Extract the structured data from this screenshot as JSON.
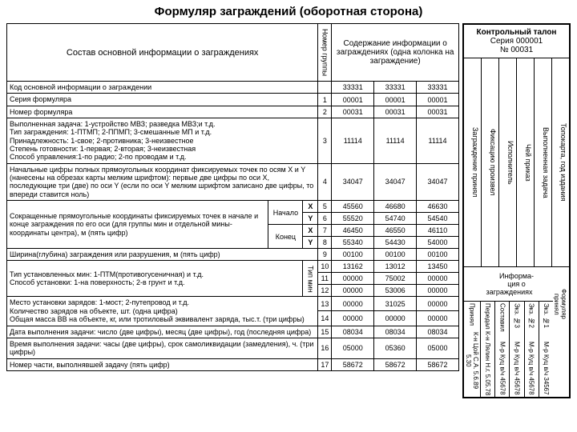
{
  "title": "Формуляр заграждений (оборотная сторона)",
  "header": {
    "composition": "Состав основной информации о заграждениях",
    "group_number": "Номер группы",
    "content_info": "Содержание информации о заграждениях (одна колонка на заграждение)"
  },
  "stub": {
    "title_bold": "Контрольный талон",
    "series": "Серия 000001",
    "number": "№ 00031",
    "vcols": [
      "Заграждение принял",
      "Фиксацию произвел",
      "Исполнитель",
      "Чей приказ",
      "Выполненная задача",
      "Топокарта, год издания"
    ],
    "info_label": "Информа-\nция о\nзаграждениях",
    "form_accepted": "Формуляр принял",
    "signers": [
      {
        "role": "Принял",
        "name": "К-н Цой С.А.\n5.6.89  5.30"
      },
      {
        "role": "Передал",
        "name": "К-н Лялин Н.г.\n5.05.78"
      },
      {
        "role": "Составил",
        "name": "М-р Куц в/ч 45678"
      },
      {
        "role": "Экз. №3",
        "name": "М-р Куц в/ч 45678"
      },
      {
        "role": "Экз. №2",
        "name": "М-р Куц в/ч 45678"
      },
      {
        "role": "Экз. №1",
        "name": "М-р Куц в/ч 34567"
      }
    ]
  },
  "rows": [
    {
      "desc": "Код основной информации о заграждении",
      "grp": "",
      "v": [
        "33331",
        "33331",
        "33331"
      ]
    },
    {
      "desc": "Серия формуляра",
      "grp": "1",
      "v": [
        "00001",
        "00001",
        "00001"
      ]
    },
    {
      "desc": "Номер формуляра",
      "grp": "2",
      "v": [
        "00031",
        "00031",
        "00031"
      ]
    },
    {
      "desc": "Выполненная задача: 1-устройство МВЗ; разведка МВЗ;и т.д.\nТип заграждения: 1-ПТМП; 2-ППМП; 3-смешанные МП и т.д.\nПринадлежность: 1-свое; 2-противника; 3-неизвестное\nСтепень готовности: 1-первая; 2-вторая; 3-неизвестная\nСпособ управления:1-по радио; 2-по проводам и т.д.",
      "grp": "3",
      "v": [
        "11114",
        "11114",
        "11114"
      ]
    },
    {
      "desc": "Начальные цифры полных прямоугольных координат фиксируемых точек по осям X и Y (нанесены на обрезах карты мелким шрифтом): первые две цифры по оси X, последующие три (две) по оси Y (если по оси Y мелким шрифтом записано две цифры, то впереди ставится ноль)",
      "grp": "4",
      "v": [
        "34047",
        "34047",
        "34047"
      ]
    }
  ],
  "coord_block": {
    "desc": "Сокращенные прямоугольные координаты фиксируемых точек в начале и конце заграждения по его оси (для группы мин и отдельной мины-координаты центра), м (пять цифр)",
    "start": "Начало",
    "end": "Конец",
    "rows": [
      {
        "axis": "X",
        "grp": "5",
        "v": [
          "45560",
          "46680",
          "46630"
        ]
      },
      {
        "axis": "Y",
        "grp": "6",
        "v": [
          "55520",
          "54740",
          "54540"
        ]
      },
      {
        "axis": "X",
        "grp": "7",
        "v": [
          "46450",
          "46550",
          "46110"
        ]
      },
      {
        "axis": "Y",
        "grp": "8",
        "v": [
          "55340",
          "54430",
          "54000"
        ]
      }
    ]
  },
  "rows2": [
    {
      "desc": "Ширина(глубина) заграждения или разрушения, м (пять цифр)",
      "grp": "9",
      "v": [
        "00100",
        "00100",
        "00100"
      ]
    }
  ],
  "mine_block": {
    "desc": "Тип установленных мин: 1-ПТМ(противогусеничная) и т.д.\nСпособ установки: 1-на поверхность; 2-в грунт и т.д.",
    "type_label": "Тип мин",
    "rows": [
      {
        "grp": "10",
        "v": [
          "13162",
          "13012",
          "13450"
        ]
      },
      {
        "grp": "11",
        "v": [
          "00000",
          "75002",
          "00000"
        ]
      },
      {
        "grp": "12",
        "v": [
          "00000",
          "53006",
          "00000"
        ]
      }
    ]
  },
  "rows3": [
    {
      "desc": "Место установки зарядов: 1-мост; 2-путепровод и т.д.\nКоличество зарядов на объекте, шт. (одна цифра)\nОбщая масса ВВ на объекте, кг, или тротиловый эквивалент заряда, тыс.т. (три цифры)",
      "grp": "13",
      "v": [
        "00000",
        "31025",
        "00000"
      ]
    },
    {
      "desc": "",
      "grp": "14",
      "v": [
        "00000",
        "00000",
        "00000"
      ]
    },
    {
      "desc": "Дата выполнения задачи: число (две цифры), месяц (две цифры), год (последняя цифра)",
      "grp": "15",
      "v": [
        "08034",
        "08034",
        "08034"
      ]
    },
    {
      "desc": "Время выполнения задачи: часы (две цифры), срок самоликвидации (замедления), ч. (три цифры)",
      "grp": "16",
      "v": [
        "05000",
        "05360",
        "05000"
      ]
    },
    {
      "desc": "Номер части, выполнявшей задачу (пять цифр)",
      "grp": "17",
      "v": [
        "58672",
        "58672",
        "58672"
      ]
    }
  ]
}
